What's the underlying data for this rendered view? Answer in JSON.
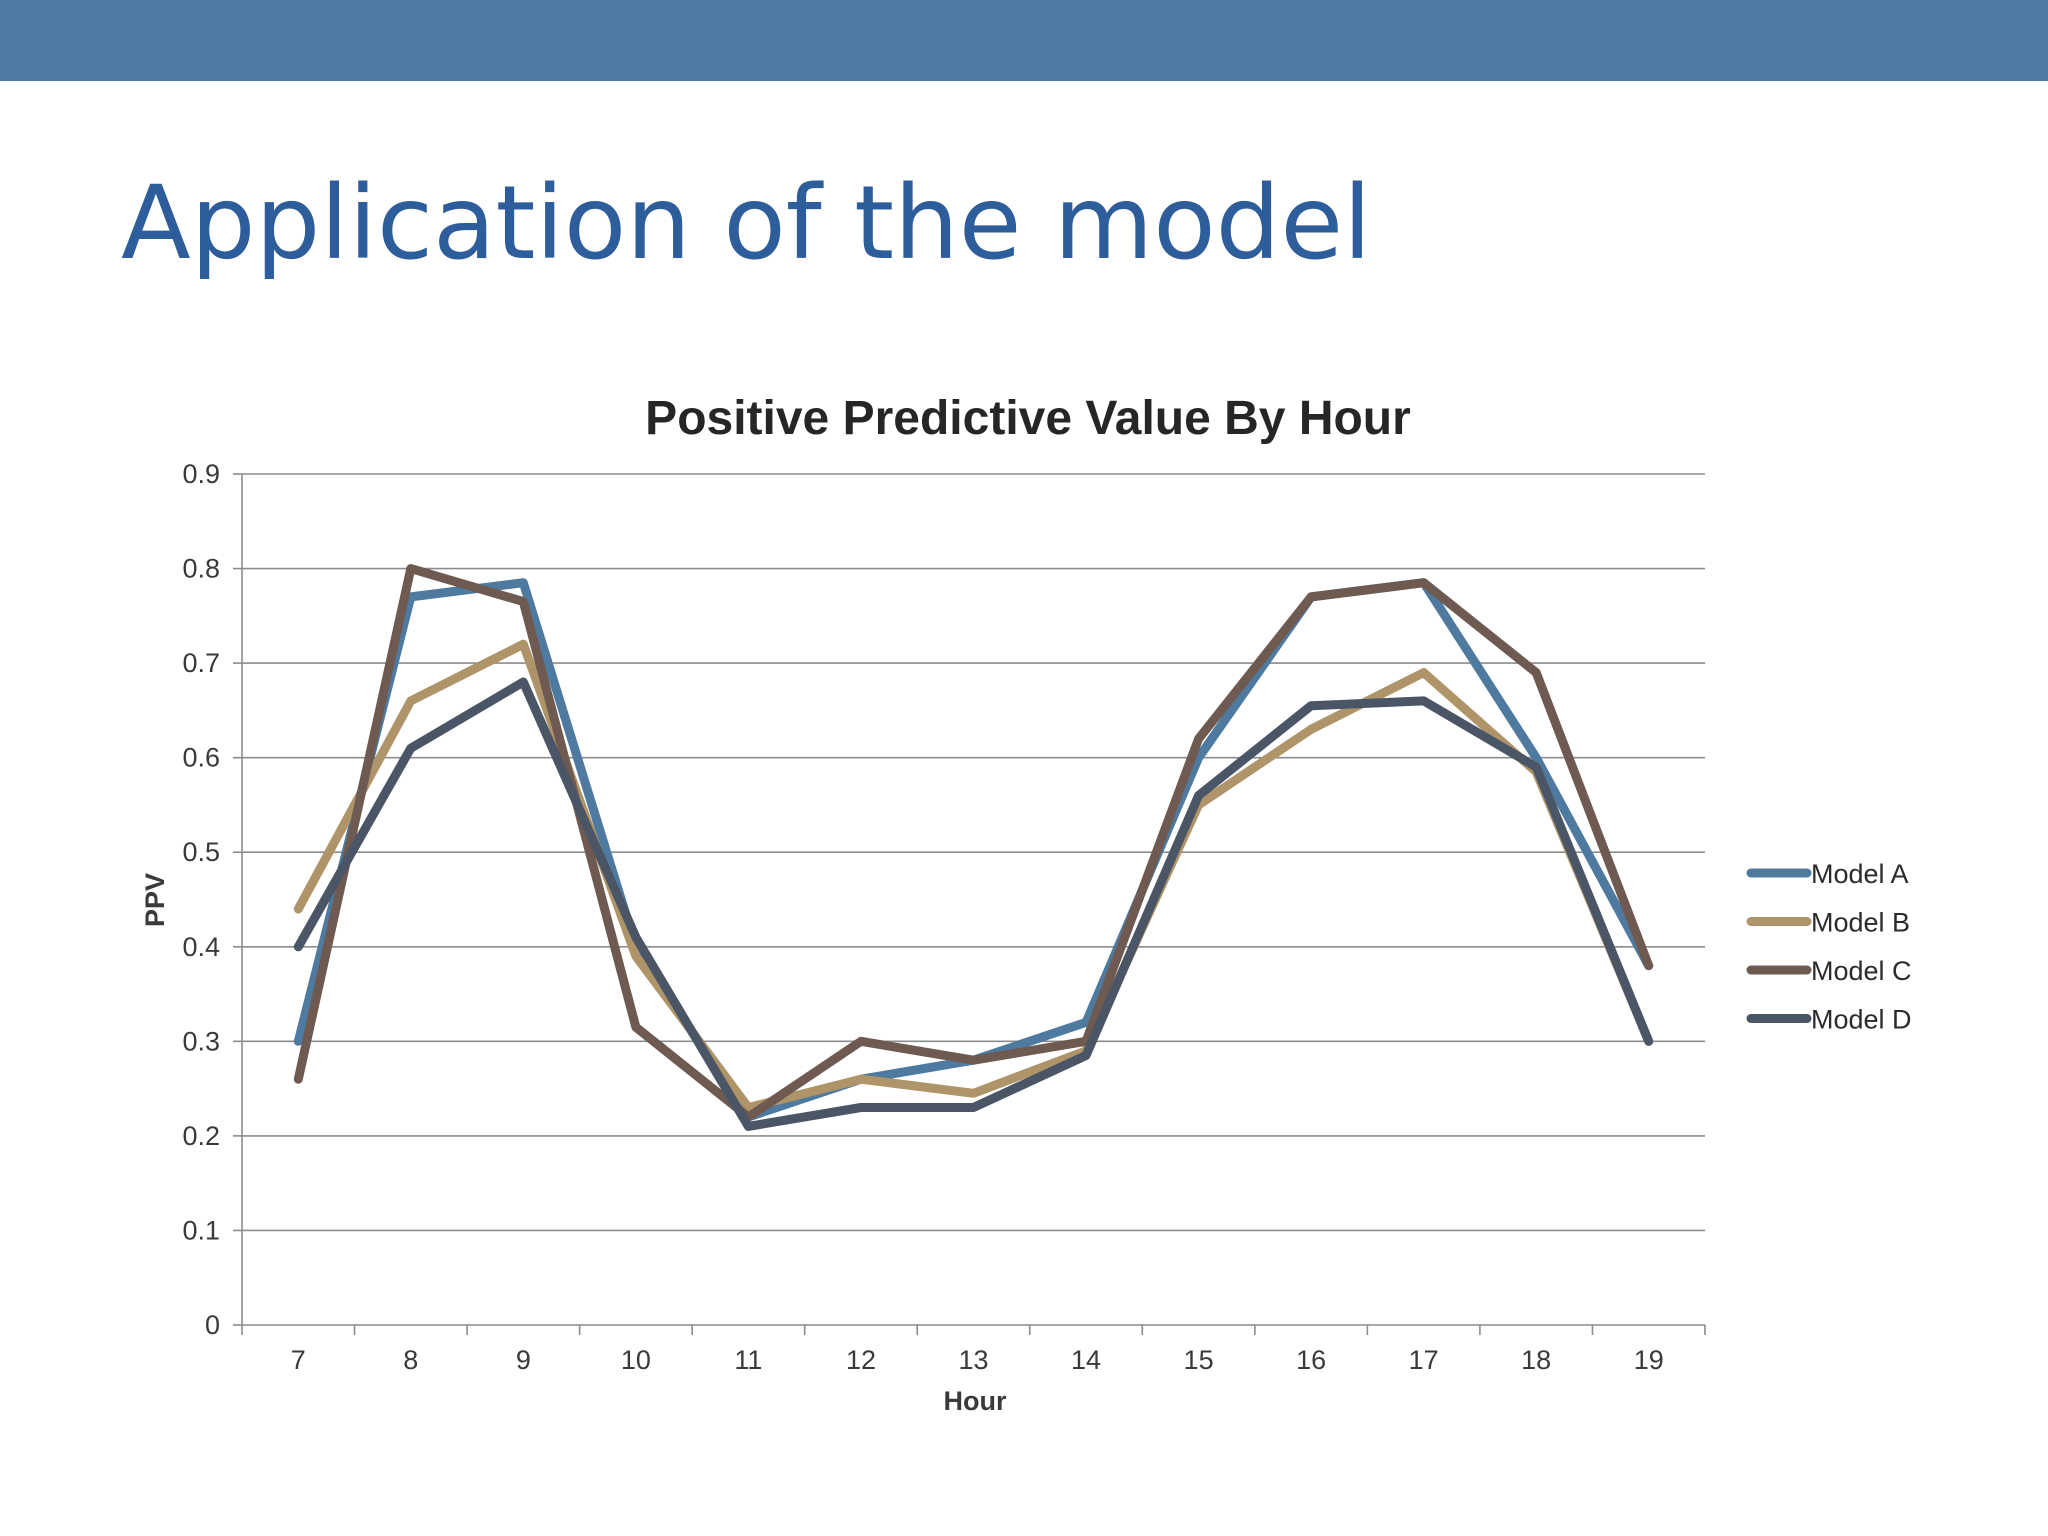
{
  "slide": {
    "title": "Application of the model"
  },
  "colors": {
    "top_bar": "#4f7ca3",
    "title_text": "#2e5d9c"
  },
  "chart_data": {
    "type": "line",
    "title": "Positive Predictive Value By Hour",
    "xlabel": "Hour",
    "ylabel": "PPV",
    "categories": [
      "7",
      "8",
      "9",
      "10",
      "11",
      "12",
      "13",
      "14",
      "15",
      "16",
      "17",
      "18",
      "19"
    ],
    "ylim": [
      0,
      0.9
    ],
    "yticks": [
      0,
      0.1,
      0.2,
      0.3,
      0.4,
      0.5,
      0.6,
      0.7,
      0.8,
      0.9
    ],
    "ytick_labels": [
      "0",
      "0.1",
      "0.2",
      "0.3",
      "0.4",
      "0.5",
      "0.6",
      "0.7",
      "0.8",
      "0.9"
    ],
    "grid": "horizontal",
    "legend": "right",
    "series": [
      {
        "name": "Model A",
        "color": "#4e7aa0",
        "values": [
          0.3,
          0.77,
          0.785,
          0.4,
          0.22,
          0.26,
          0.28,
          0.32,
          0.6,
          0.77,
          0.785,
          0.6,
          0.38
        ]
      },
      {
        "name": "Model B",
        "color": "#b09469",
        "values": [
          0.44,
          0.66,
          0.72,
          0.39,
          0.23,
          0.26,
          0.245,
          0.29,
          0.55,
          0.63,
          0.69,
          0.585,
          0.3
        ]
      },
      {
        "name": "Model C",
        "color": "#6e5a50",
        "values": [
          0.26,
          0.8,
          0.765,
          0.315,
          0.22,
          0.3,
          0.28,
          0.3,
          0.62,
          0.77,
          0.785,
          0.69,
          0.38
        ]
      },
      {
        "name": "Model D",
        "color": "#4a5666",
        "values": [
          0.4,
          0.61,
          0.68,
          0.41,
          0.21,
          0.23,
          0.23,
          0.285,
          0.56,
          0.655,
          0.66,
          0.59,
          0.3
        ]
      }
    ]
  }
}
